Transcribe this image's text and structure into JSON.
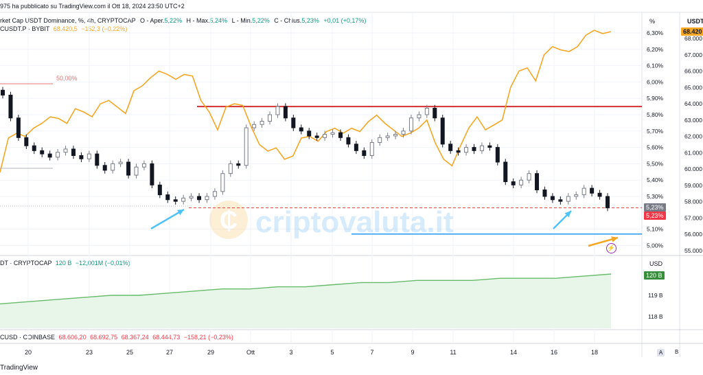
{
  "header": {
    "published": "975 ha pubblicato su TradingView.com il Ott 18, 2024 23:50 UTC+2"
  },
  "legend_main": {
    "symbol": "rket Cap USDT Dominance, %, 4h, CRYPTOCAP",
    "o_label": "O - Aper.",
    "o_value": "5,22%",
    "h_label": "H - Max.",
    "h_value": "5,24%",
    "l_label": "L - Min.",
    "l_value": "5,22%",
    "c_label": "C - Chius.",
    "c_value": "5,23%",
    "change": "+0,01 (+0,17%)"
  },
  "legend_btc": {
    "symbol": "CUSDT.P · BYBIT",
    "value": "68.420,5",
    "change": "−152,3 (−0,22%)"
  },
  "legend_usdt": {
    "symbol": "DT · CRYPTOCAP",
    "value": "120 B",
    "change": "−12,001M (−0,01%)"
  },
  "legend_coinbase": {
    "symbol": "CUSD · COINBASE",
    "o": "68.606,20",
    "h": "68.692,75",
    "l": "68.367,24",
    "c": "68.444,73",
    "change": "−158,21 (−0,23%)"
  },
  "axis_headers": {
    "percent": "%",
    "usdt": "USDT",
    "usd": "USD"
  },
  "badges": {
    "btc_price": "68.420",
    "dominance_grey": "5,23%",
    "dominance_red": "5,23%",
    "volume": "120 B"
  },
  "annotation_50": "50,00%",
  "watermark": "criptovaluta.it",
  "footer_brand": "TradingView",
  "bottom_buttons": {
    "a": "A",
    "b": "B"
  },
  "colors": {
    "btc_line": "#f5a623",
    "resistance": "#d32f2f",
    "support": "#2196f3",
    "dashed": "#e53935",
    "arrow": "#4fc3f7",
    "area_line": "#66bb6a",
    "area_fill": "#e8f5e9"
  },
  "chart_data": {
    "type": "line",
    "x_ticks": [
      "20",
      "23",
      "25",
      "27",
      "29",
      "Ott",
      "3",
      "5",
      "7",
      "9",
      "11",
      "14",
      "16",
      "18"
    ],
    "pct_ticks": [
      "6,30%",
      "6,20%",
      "6,10%",
      "6,00%",
      "5,90%",
      "5,80%",
      "5,70%",
      "5,60%",
      "5,50%",
      "5,40%",
      "5,30%",
      "5,10%",
      "5,00%"
    ],
    "usdt_ticks": [
      "68.000",
      "67.000",
      "66.000",
      "65.000",
      "64.000",
      "63.000",
      "62.000",
      "61.000",
      "60.000",
      "59.000",
      "58.000",
      "57.000",
      "56.000",
      "55.000"
    ],
    "usd_ticks": [
      "119 B",
      "118 B"
    ],
    "usdt_dominance_close": [
      5.92,
      5.78,
      5.66,
      5.61,
      5.58,
      5.56,
      5.54,
      5.57,
      5.59,
      5.55,
      5.53,
      5.56,
      5.49,
      5.46,
      5.5,
      5.51,
      5.43,
      5.48,
      5.5,
      5.37,
      5.31,
      5.28,
      5.27,
      5.29,
      5.3,
      5.28,
      5.3,
      5.33,
      5.44,
      5.5,
      5.49,
      5.72,
      5.74,
      5.76,
      5.8,
      5.85,
      5.78,
      5.72,
      5.7,
      5.67,
      5.66,
      5.68,
      5.69,
      5.66,
      5.62,
      5.58,
      5.55,
      5.63,
      5.66,
      5.67,
      5.68,
      5.7,
      5.78,
      5.8,
      5.84,
      5.78,
      5.62,
      5.58,
      5.57,
      5.6,
      5.58,
      5.61,
      5.6,
      5.51,
      5.39,
      5.37,
      5.4,
      5.44,
      5.34,
      5.3,
      5.28,
      5.27,
      5.3,
      5.31,
      5.35,
      5.32,
      5.3,
      5.23
    ],
    "btc_price": [
      59800,
      61900,
      62200,
      62000,
      62500,
      62800,
      63200,
      63100,
      62800,
      63700,
      63500,
      63200,
      64000,
      64200,
      63800,
      63400,
      64800,
      65100,
      65600,
      66000,
      65800,
      65500,
      65800,
      65700,
      64200,
      63500,
      62400,
      63800,
      64000,
      63900,
      62600,
      61500,
      61100,
      61300,
      60600,
      60800,
      61900,
      62000,
      61700,
      62300,
      62500,
      62200,
      62500,
      62300,
      62900,
      63300,
      62800,
      62400,
      62000,
      62200,
      62500,
      63000,
      61600,
      60600,
      60200,
      61400,
      62500,
      63200,
      62400,
      62700,
      63000,
      65000,
      66000,
      66200,
      65400,
      67000,
      67500,
      67300,
      67200,
      67500,
      68200,
      68500,
      68300,
      68420
    ],
    "usdt_market_cap_b": [
      118.6,
      118.7,
      118.8,
      118.9,
      119.0,
      119.0,
      119.1,
      119.2,
      119.3,
      119.3,
      119.4,
      119.4,
      119.5,
      119.6,
      119.6,
      119.7,
      119.7,
      119.7,
      119.8,
      119.8,
      119.8,
      119.9,
      120.0
    ],
    "resistance_pct": 5.85,
    "support_pct": 5.07,
    "current_pct": 5.23,
    "current_btc": 68420.5,
    "current_usdt_b": 120
  }
}
